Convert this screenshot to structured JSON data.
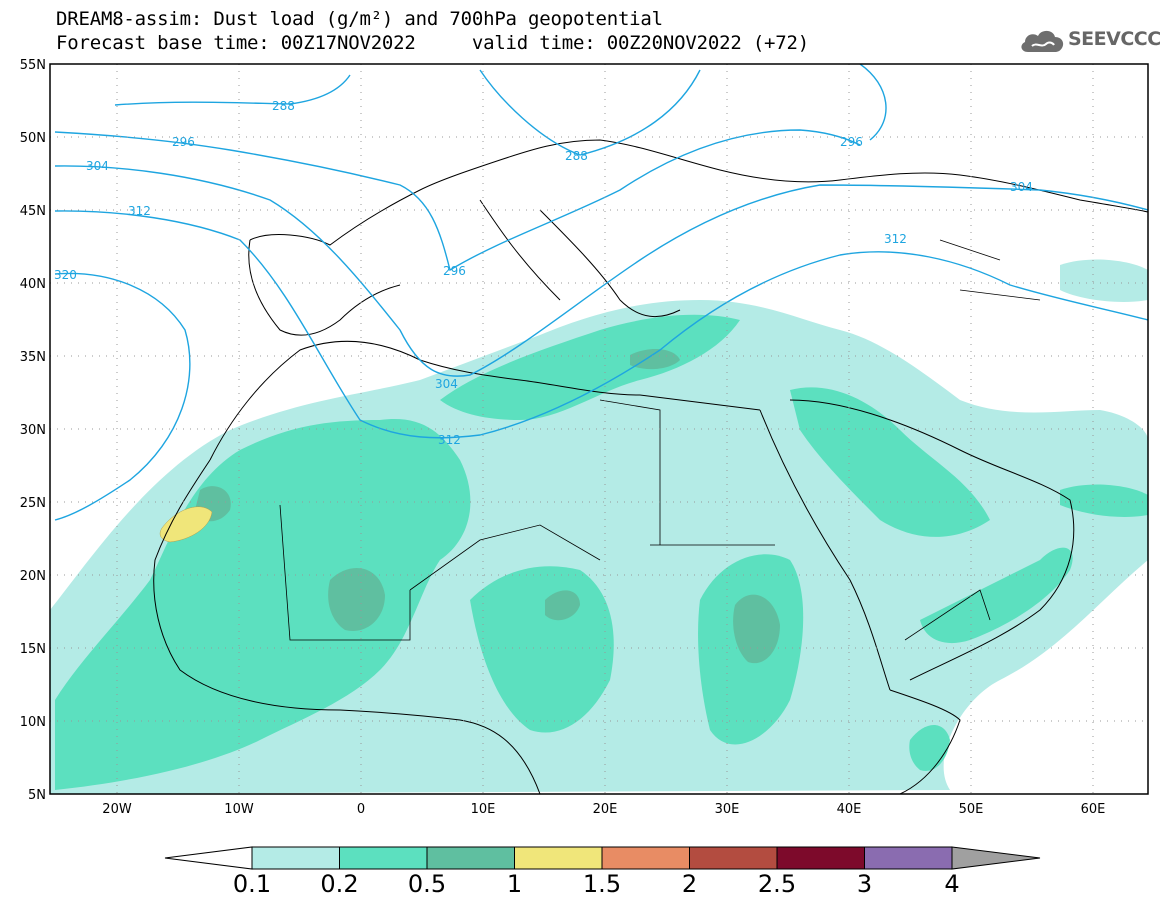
{
  "header": {
    "title_line1": "DREAM8-assim: Dust load (g/m²) and 700hPa geopotential",
    "title_line2": "Forecast base time: 00Z17NOV2022     valid time: 00Z20NOV2022 (+72)",
    "logo_text": "SEEVCCC"
  },
  "map": {
    "lat_labels": [
      "55N",
      "50N",
      "45N",
      "40N",
      "35N",
      "30N",
      "25N",
      "20N",
      "15N",
      "10N",
      "5N"
    ],
    "lon_labels": [
      "20W",
      "10W",
      "0",
      "10E",
      "20E",
      "30E",
      "40E",
      "50E",
      "60E"
    ],
    "contour_color": "#1ea5e0",
    "contour_labels": [
      "288",
      "288",
      "296",
      "296",
      "304",
      "304",
      "304",
      "312",
      "312",
      "312",
      "320",
      "296"
    ]
  },
  "colorbar": {
    "colors": [
      "#b4ebe6",
      "#5ce0bf",
      "#5fbfa0",
      "#f0e67a",
      "#e88c64",
      "#b34c40",
      "#7d0a2b",
      "#8a6cb0"
    ],
    "tick_labels": [
      "0.1",
      "0.2",
      "0.5",
      "1",
      "1.5",
      "2",
      "2.5",
      "3",
      "4"
    ]
  }
}
